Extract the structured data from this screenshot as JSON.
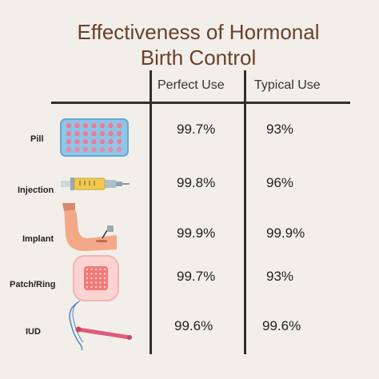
{
  "title": {
    "line1": "Effectiveness of Hormonal",
    "line2": "Birth Control"
  },
  "columns": {
    "perfect": "Perfect Use",
    "typical": "Typical Use"
  },
  "rows": [
    {
      "label": "Pill",
      "icon": "pill-pack-icon",
      "perfect": "99.7%",
      "typical": "93%"
    },
    {
      "label": "Injection",
      "icon": "syringe-icon",
      "perfect": "99.8%",
      "typical": "96%"
    },
    {
      "label": "Implant",
      "icon": "arm-implant-icon",
      "perfect": "99.9%",
      "typical": "99.9%"
    },
    {
      "label": "Patch/Ring",
      "icon": "patch-icon",
      "perfect": "99.7%",
      "typical": "93%"
    },
    {
      "label": "IUD",
      "icon": "iud-icon",
      "perfect": "99.6%",
      "typical": "99.6%"
    }
  ],
  "colors": {
    "background": "#f2efea",
    "title": "#6b3f2a",
    "lines": "#2f2f2f"
  }
}
